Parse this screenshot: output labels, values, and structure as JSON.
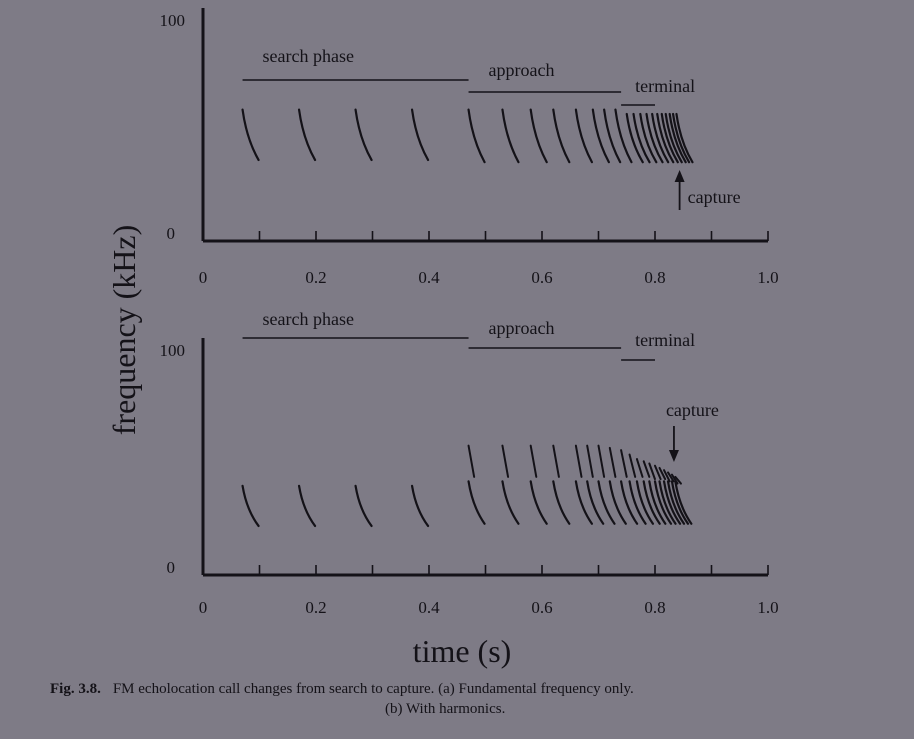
{
  "chart_data": [
    {
      "id": "a",
      "type": "scatter",
      "title": "",
      "xlabel": "time (s)",
      "ylabel": "frequency (kHz)",
      "xlim": [
        0,
        1.0
      ],
      "ylim": [
        0,
        100
      ],
      "x_ticks": [
        "0",
        "0.2",
        "0.4",
        "0.6",
        "0.8",
        "1.0"
      ],
      "y_ticks": [
        "0",
        "100"
      ],
      "grid": false,
      "phases": [
        {
          "label": "search phase",
          "start": 0.07,
          "end": 0.47
        },
        {
          "label": "approach",
          "start": 0.47,
          "end": 0.74
        },
        {
          "label": "terminal",
          "start": 0.74,
          "end": 0.8
        }
      ],
      "annotation": {
        "label": "capture",
        "time": 0.84,
        "direction": "up"
      },
      "calls": [
        {
          "t": 0.07,
          "f_start": 60,
          "f_end": 37
        },
        {
          "t": 0.17,
          "f_start": 60,
          "f_end": 37
        },
        {
          "t": 0.27,
          "f_start": 60,
          "f_end": 37
        },
        {
          "t": 0.37,
          "f_start": 60,
          "f_end": 37
        },
        {
          "t": 0.47,
          "f_start": 60,
          "f_end": 36
        },
        {
          "t": 0.53,
          "f_start": 60,
          "f_end": 36
        },
        {
          "t": 0.58,
          "f_start": 60,
          "f_end": 36
        },
        {
          "t": 0.62,
          "f_start": 60,
          "f_end": 36
        },
        {
          "t": 0.66,
          "f_start": 60,
          "f_end": 36
        },
        {
          "t": 0.69,
          "f_start": 60,
          "f_end": 36
        },
        {
          "t": 0.71,
          "f_start": 60,
          "f_end": 36
        },
        {
          "t": 0.73,
          "f_start": 60,
          "f_end": 36
        },
        {
          "t": 0.75,
          "f_start": 58,
          "f_end": 36
        },
        {
          "t": 0.762,
          "f_start": 58,
          "f_end": 36
        },
        {
          "t": 0.774,
          "f_start": 58,
          "f_end": 36
        },
        {
          "t": 0.785,
          "f_start": 58,
          "f_end": 36
        },
        {
          "t": 0.795,
          "f_start": 58,
          "f_end": 36
        },
        {
          "t": 0.804,
          "f_start": 58,
          "f_end": 36
        },
        {
          "t": 0.812,
          "f_start": 58,
          "f_end": 36
        },
        {
          "t": 0.819,
          "f_start": 58,
          "f_end": 36
        },
        {
          "t": 0.826,
          "f_start": 58,
          "f_end": 36
        },
        {
          "t": 0.832,
          "f_start": 58,
          "f_end": 36
        },
        {
          "t": 0.838,
          "f_start": 58,
          "f_end": 36
        }
      ]
    },
    {
      "id": "b",
      "type": "scatter",
      "title": "",
      "xlabel": "time (s)",
      "ylabel": "frequency (kHz)",
      "xlim": [
        0,
        1.0
      ],
      "ylim": [
        0,
        100
      ],
      "x_ticks": [
        "0",
        "0.2",
        "0.4",
        "0.6",
        "0.8",
        "1.0"
      ],
      "y_ticks": [
        "0",
        "100"
      ],
      "grid": false,
      "phases": [
        {
          "label": "search phase",
          "start": 0.07,
          "end": 0.47
        },
        {
          "label": "approach",
          "start": 0.47,
          "end": 0.74
        },
        {
          "label": "terminal",
          "start": 0.74,
          "end": 0.8
        }
      ],
      "annotation": {
        "label": "capture",
        "time": 0.83,
        "direction": "down"
      },
      "calls": [
        {
          "t": 0.07,
          "f_start": 40,
          "f_end": 22
        },
        {
          "t": 0.17,
          "f_start": 40,
          "f_end": 22
        },
        {
          "t": 0.27,
          "f_start": 40,
          "f_end": 22
        },
        {
          "t": 0.37,
          "f_start": 40,
          "f_end": 22
        },
        {
          "t": 0.47,
          "f_start": 42,
          "f_end": 23,
          "h_start": 58,
          "h_end": 44
        },
        {
          "t": 0.53,
          "f_start": 42,
          "f_end": 23,
          "h_start": 58,
          "h_end": 44
        },
        {
          "t": 0.58,
          "f_start": 42,
          "f_end": 23,
          "h_start": 58,
          "h_end": 44
        },
        {
          "t": 0.62,
          "f_start": 42,
          "f_end": 23,
          "h_start": 58,
          "h_end": 44
        },
        {
          "t": 0.66,
          "f_start": 42,
          "f_end": 23,
          "h_start": 58,
          "h_end": 44
        },
        {
          "t": 0.68,
          "f_start": 42,
          "f_end": 23,
          "h_start": 58,
          "h_end": 44
        },
        {
          "t": 0.7,
          "f_start": 42,
          "f_end": 23,
          "h_start": 58,
          "h_end": 44
        },
        {
          "t": 0.72,
          "f_start": 42,
          "f_end": 23,
          "h_start": 57,
          "h_end": 44
        },
        {
          "t": 0.74,
          "f_start": 42,
          "f_end": 23,
          "h_start": 56,
          "h_end": 44
        },
        {
          "t": 0.755,
          "f_start": 42,
          "f_end": 23,
          "h_start": 54,
          "h_end": 44
        },
        {
          "t": 0.768,
          "f_start": 42,
          "f_end": 23,
          "h_start": 52,
          "h_end": 44
        },
        {
          "t": 0.78,
          "f_start": 42,
          "f_end": 23,
          "h_start": 51,
          "h_end": 44
        },
        {
          "t": 0.79,
          "f_start": 42,
          "f_end": 23,
          "h_start": 50,
          "h_end": 43
        },
        {
          "t": 0.8,
          "f_start": 42,
          "f_end": 23,
          "h_start": 49,
          "h_end": 43
        },
        {
          "t": 0.808,
          "f_start": 42,
          "f_end": 23,
          "h_start": 48,
          "h_end": 43
        },
        {
          "t": 0.816,
          "f_start": 42,
          "f_end": 23,
          "h_start": 47,
          "h_end": 42
        },
        {
          "t": 0.823,
          "f_start": 42,
          "f_end": 23,
          "h_start": 46,
          "h_end": 42
        },
        {
          "t": 0.83,
          "f_start": 42,
          "f_end": 23,
          "h_start": 45,
          "h_end": 41
        },
        {
          "t": 0.836,
          "f_start": 42,
          "f_end": 23,
          "h_start": 44,
          "h_end": 41
        }
      ]
    }
  ],
  "caption": {
    "label": "Fig. 3.8.",
    "line1": "FM echolocation call changes from search to capture. (a) Fundamental frequency only.",
    "line2": "(b) With harmonics."
  }
}
